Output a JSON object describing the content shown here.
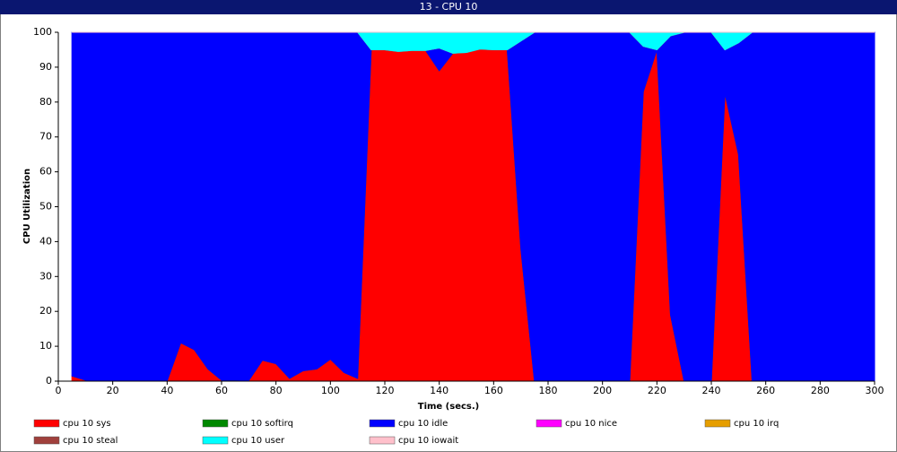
{
  "chart_data": {
    "type": "stacked_area",
    "title": "13 - CPU 10",
    "xlabel": "Time (secs.)",
    "ylabel": "CPU Utilization",
    "x": [
      5,
      10,
      15,
      20,
      25,
      30,
      35,
      40,
      45,
      50,
      55,
      60,
      65,
      70,
      75,
      80,
      85,
      90,
      95,
      100,
      105,
      110,
      115,
      120,
      125,
      130,
      135,
      140,
      145,
      150,
      155,
      160,
      165,
      170,
      175,
      180,
      185,
      190,
      195,
      200,
      205,
      210,
      215,
      220,
      225,
      230,
      235,
      240,
      245,
      250,
      255,
      260,
      265,
      270,
      275,
      280,
      285,
      290,
      295,
      300
    ],
    "series": [
      {
        "name": "cpu 10 sys",
        "color": "#ff0000",
        "values": [
          1.5,
          0.3,
          0,
          0,
          0.2,
          0.3,
          0.2,
          0.1,
          11,
          9,
          3.5,
          0.3,
          0.3,
          0.2,
          6,
          5,
          0.8,
          3,
          3.5,
          6.3,
          2.5,
          0.8,
          95,
          95,
          94.5,
          94.8,
          94.8,
          89,
          94,
          94.2,
          95.2,
          95,
          95,
          38,
          0,
          0,
          0,
          0,
          0,
          0,
          0,
          0,
          83,
          95,
          19,
          0,
          0,
          0,
          82.5,
          65,
          0,
          0,
          0,
          0,
          0,
          0,
          0,
          0,
          0,
          0
        ]
      },
      {
        "name": "cpu 10 softirq",
        "color": "#008800",
        "values": [
          0,
          0,
          0,
          0,
          0,
          0,
          0,
          0,
          0,
          0,
          0,
          0,
          0,
          0,
          0,
          0,
          0,
          0,
          0,
          0,
          0,
          0,
          0,
          0,
          0,
          0,
          0,
          0,
          0,
          0,
          0,
          0,
          0,
          0,
          0,
          0,
          0,
          0,
          0,
          0,
          0,
          0,
          0,
          0,
          0,
          0,
          0,
          0,
          0,
          0,
          0,
          0,
          0,
          0,
          0,
          0,
          0,
          0,
          0,
          0
        ]
      },
      {
        "name": "cpu 10 idle",
        "color": "#0000ff",
        "values": [
          98.5,
          99.7,
          100,
          100,
          99.8,
          99.7,
          99.8,
          99.9,
          89,
          91,
          96.5,
          99.7,
          99.7,
          99.8,
          94,
          95,
          99.2,
          97,
          96.5,
          93.7,
          97.5,
          99.2,
          0,
          0,
          0,
          0,
          0,
          6.5,
          0,
          0,
          0,
          0,
          0,
          59.5,
          100,
          100,
          100,
          100,
          100,
          100,
          100,
          100,
          13,
          0,
          80,
          100,
          100,
          100,
          12.5,
          32,
          100,
          100,
          100,
          100,
          100,
          100,
          100,
          100,
          100,
          100
        ]
      },
      {
        "name": "cpu 10 nice",
        "color": "#ff00ff",
        "values": [
          0,
          0,
          0,
          0,
          0,
          0,
          0,
          0,
          0,
          0,
          0,
          0,
          0,
          0,
          0,
          0,
          0,
          0,
          0,
          0,
          0,
          0,
          0,
          0,
          0,
          0,
          0,
          0,
          0,
          0,
          0,
          0,
          0,
          0,
          0,
          0,
          0,
          0,
          0,
          0,
          0,
          0,
          0,
          0,
          0,
          0,
          0,
          0,
          0,
          0,
          0,
          0,
          0,
          0,
          0,
          0,
          0,
          0,
          0,
          0
        ]
      },
      {
        "name": "cpu 10 irq",
        "color": "#e69e00",
        "values": [
          0,
          0,
          0,
          0,
          0,
          0,
          0,
          0,
          0,
          0,
          0,
          0,
          0,
          0,
          0,
          0,
          0,
          0,
          0,
          0,
          0,
          0,
          0,
          0,
          0,
          0,
          0,
          0,
          0,
          0,
          0,
          0,
          0,
          0,
          0,
          0,
          0,
          0,
          0,
          0,
          0,
          0,
          0,
          0,
          0,
          0,
          0,
          0,
          0,
          0,
          0,
          0,
          0,
          0,
          0,
          0,
          0,
          0,
          0,
          0
        ]
      },
      {
        "name": "cpu 10 steal",
        "color": "#a0403c",
        "values": [
          0,
          0,
          0,
          0,
          0,
          0,
          0,
          0,
          0,
          0,
          0,
          0,
          0,
          0,
          0,
          0,
          0,
          0,
          0,
          0,
          0,
          0,
          0,
          0,
          0,
          0,
          0,
          0,
          0,
          0,
          0,
          0,
          0,
          0,
          0,
          0,
          0,
          0,
          0,
          0,
          0,
          0,
          0,
          0,
          0,
          0,
          0,
          0,
          0,
          0,
          0,
          0,
          0,
          0,
          0,
          0,
          0,
          0,
          0,
          0
        ]
      },
      {
        "name": "cpu 10 user",
        "color": "#00ffff",
        "values": [
          0,
          0,
          0,
          0,
          0,
          0,
          0,
          0,
          0,
          0,
          0,
          0,
          0,
          0,
          0,
          0,
          0,
          0,
          0,
          0,
          0,
          0,
          5,
          5,
          5.5,
          5.2,
          5.2,
          4.5,
          6,
          5.8,
          4.8,
          5,
          5,
          2.5,
          0,
          0,
          0,
          0,
          0,
          0,
          0,
          0,
          4,
          5,
          1,
          0,
          0,
          0,
          5,
          3,
          0,
          0,
          0,
          0,
          0,
          0,
          0,
          0,
          0,
          0
        ]
      },
      {
        "name": "cpu 10 iowait",
        "color": "#ffc0cb",
        "values": [
          0,
          0,
          0,
          0,
          0,
          0,
          0,
          0,
          0,
          0,
          0,
          0,
          0,
          0,
          0,
          0,
          0,
          0,
          0,
          0,
          0,
          0,
          0,
          0,
          0,
          0,
          0,
          0,
          0,
          0,
          0,
          0,
          0,
          0,
          0,
          0,
          0,
          0,
          0,
          0,
          0,
          0,
          0,
          0,
          0,
          0,
          0,
          0,
          0,
          0,
          0,
          0,
          0,
          0,
          0,
          0,
          0,
          0,
          0,
          0
        ]
      }
    ],
    "xlim": [
      0,
      300
    ],
    "xticks": [
      0,
      20,
      40,
      60,
      80,
      100,
      120,
      140,
      160,
      180,
      200,
      220,
      240,
      260,
      280,
      300
    ],
    "ylim": [
      0,
      100
    ],
    "yticks": [
      0,
      10,
      20,
      30,
      40,
      50,
      60,
      70,
      80,
      90,
      100
    ]
  }
}
